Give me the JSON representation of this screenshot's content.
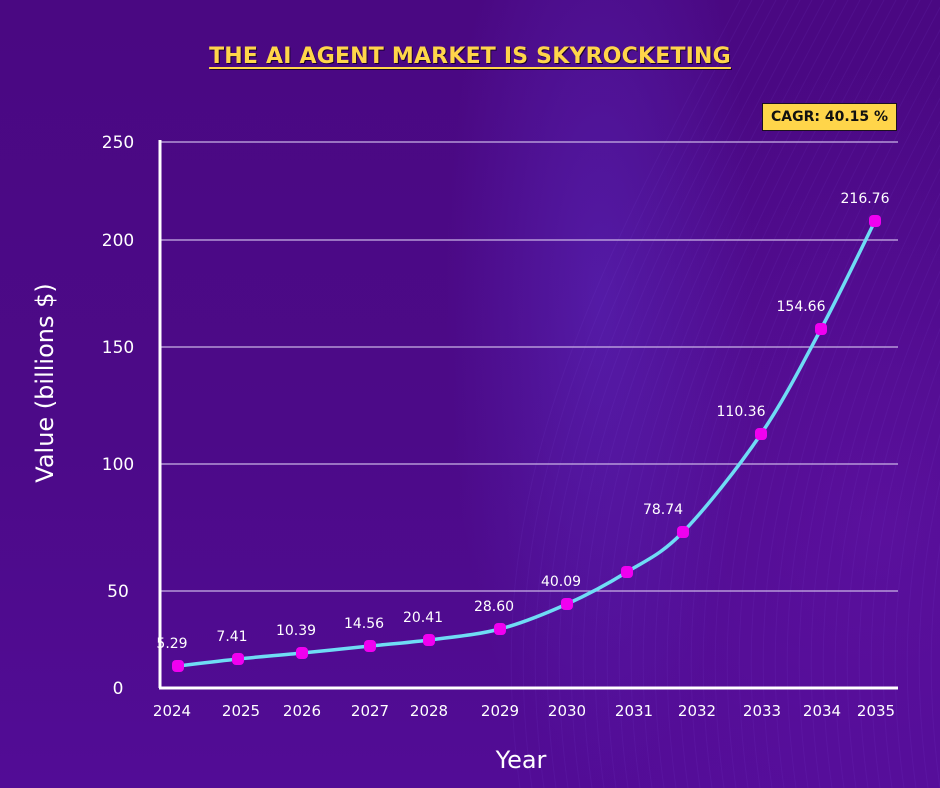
{
  "colors": {
    "background": "#4a0a85",
    "title": "#ffd54a",
    "badge_bg": "#ffd54a",
    "line": "#6fdcf5",
    "marker": "#f000f0",
    "grid": "#c9b3e6",
    "axis": "#ffffff"
  },
  "title": "THE AI AGENT MARKET IS SKYROCKETING",
  "badge": "CAGR: 40.15 %",
  "chart_data": {
    "type": "line",
    "title": "THE AI AGENT MARKET IS SKYROCKETING",
    "xlabel": "Year",
    "ylabel": "Value (billions $)",
    "annotation": "CAGR: 40.15 %",
    "categories": [
      "2024",
      "2025",
      "2026",
      "2027",
      "2028",
      "2029",
      "2030",
      "2031",
      "2032",
      "2033",
      "2034",
      "2035"
    ],
    "series": [
      {
        "name": "Value (billions $)",
        "values": [
          5.29,
          7.41,
          10.39,
          14.56,
          20.41,
          28.6,
          40.09,
          56.0,
          78.74,
          110.36,
          154.66,
          216.76
        ],
        "labels": [
          "5.29",
          "7.41",
          "10.39",
          "14.56",
          "20.41",
          "28.60",
          "40.09",
          "",
          "78.74",
          "110.36",
          "154.66",
          "216.76"
        ]
      }
    ],
    "yticks": [
      0,
      50,
      100,
      150,
      200,
      250
    ],
    "ytick_labels": [
      "0",
      "50",
      "100",
      "150",
      "200",
      "250"
    ],
    "ylim": [
      0,
      250
    ],
    "grid": true,
    "legend": "none"
  }
}
